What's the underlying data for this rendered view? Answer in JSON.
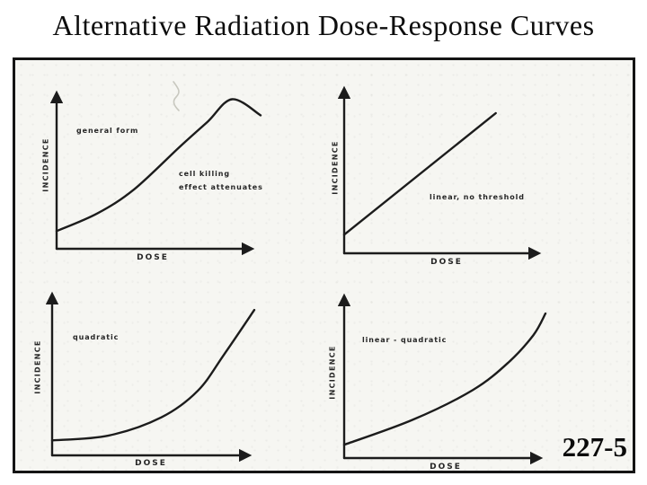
{
  "title": "Alternative Radiation Dose-Response Curves",
  "slide_number": "227-5",
  "colors": {
    "ink": "#1c1c1c",
    "frame_border": "#141414",
    "slide_bg": "#f6f6f2"
  },
  "chart_data": [
    {
      "id": "top_left",
      "type": "line",
      "label": "general form",
      "annotation_lines": [
        "cell killing",
        "effect attenuates"
      ],
      "xlabel": "DOSE",
      "ylabel": "INCIDENCE",
      "scale_note": "axes unlabeled; x/y are normalized 0-100 estimates",
      "x": [
        0,
        20,
        38,
        60,
        74,
        86,
        100
      ],
      "y": [
        11,
        22,
        37,
        63,
        79,
        93,
        83
      ]
    },
    {
      "id": "top_right",
      "type": "line",
      "label": "linear, no threshold",
      "xlabel": "DOSE",
      "ylabel": "INCIDENCE",
      "scale_note": "axes unlabeled; x/y are normalized 0-100 estimates",
      "x": [
        0,
        76
      ],
      "y": [
        11,
        83
      ]
    },
    {
      "id": "bottom_left",
      "type": "line",
      "label": "quadratic",
      "xlabel": "DOSE",
      "ylabel": "INCIDENCE",
      "scale_note": "axes unlabeled; x/y are normalized 0-100 estimates",
      "x": [
        0,
        28,
        54,
        72,
        85,
        100
      ],
      "y": [
        9,
        12,
        23,
        39,
        61,
        88
      ]
    },
    {
      "id": "bottom_right",
      "type": "line",
      "label": "linear - quadratic",
      "xlabel": "DOSE",
      "ylabel": "INCIDENCE",
      "scale_note": "axes unlabeled; x/y are normalized 0-100 estimates",
      "x": [
        0,
        34,
        64,
        82,
        94,
        100
      ],
      "y": [
        8,
        23,
        41,
        58,
        74,
        87
      ]
    }
  ]
}
